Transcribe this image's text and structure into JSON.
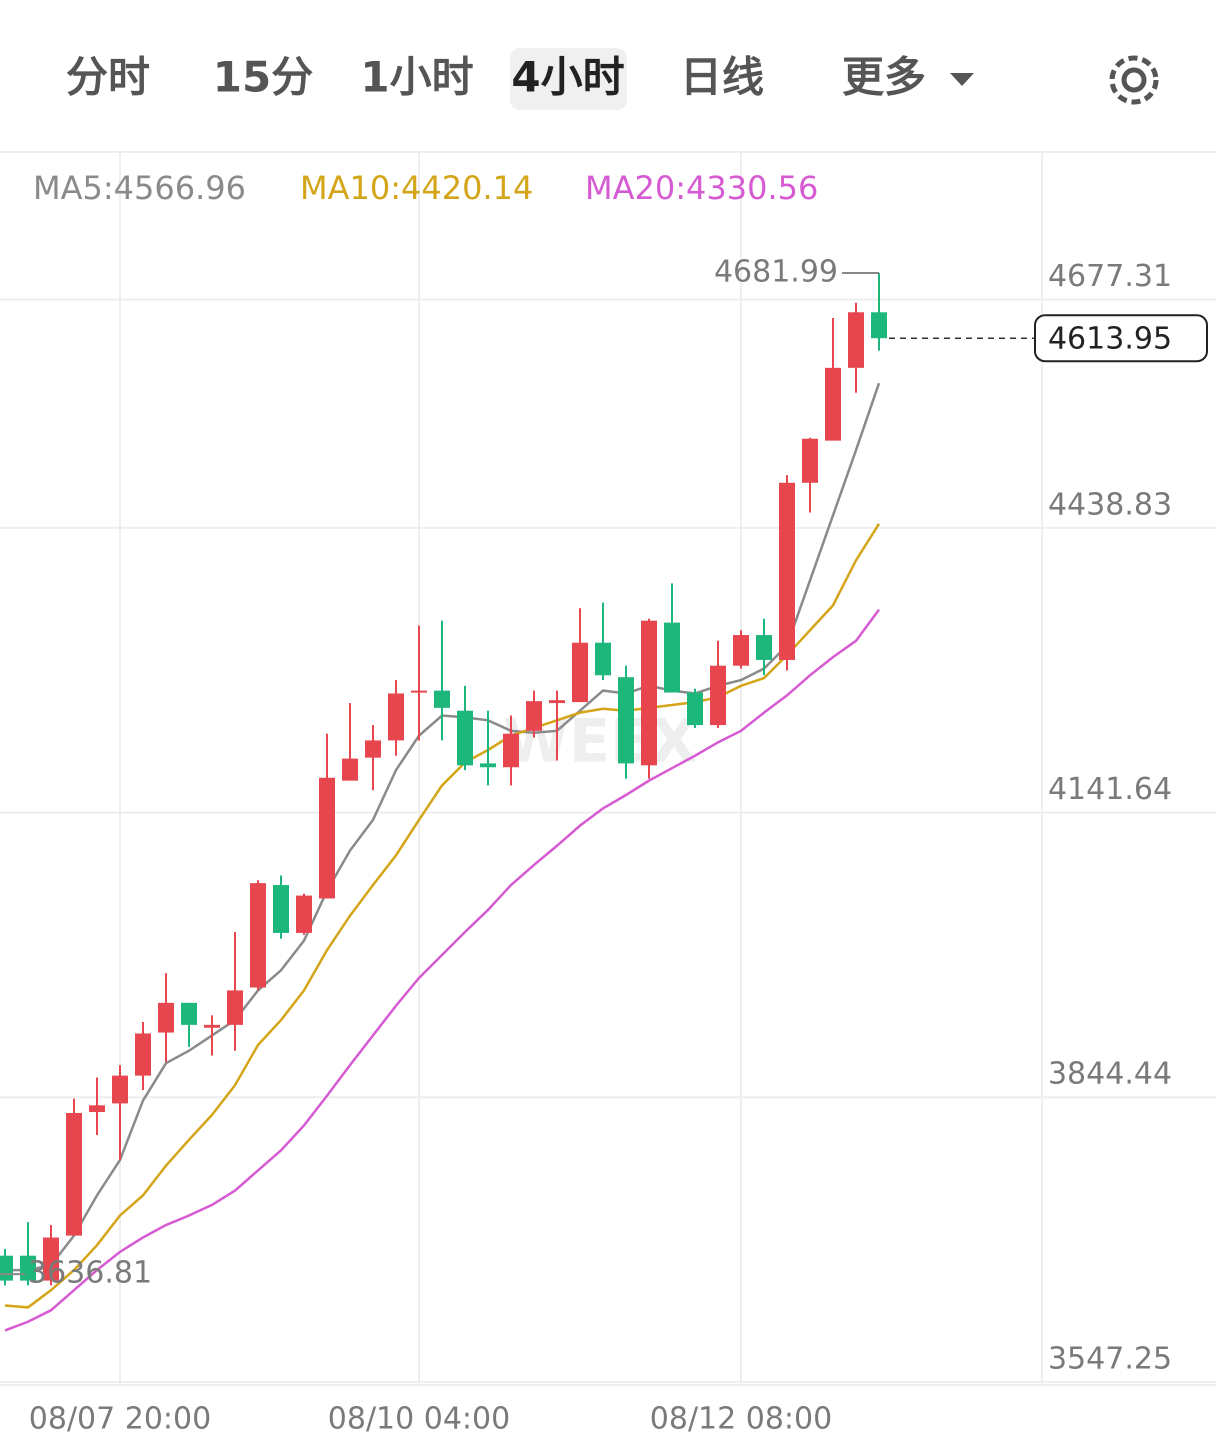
{
  "tabs": [
    "分时",
    "15分",
    "1小时",
    "4小时",
    "日线",
    "更多"
  ],
  "active_tab": 3,
  "chart_data": {
    "type": "candlestick",
    "categories": [
      null,
      null,
      null,
      null,
      null,
      "08/07 20:00",
      null,
      null,
      null,
      null,
      null,
      null,
      null,
      null,
      null,
      null,
      null,
      null,
      "08/10 04:00",
      null,
      null,
      null,
      null,
      null,
      null,
      null,
      null,
      null,
      null,
      null,
      null,
      null,
      "08/12 08:00",
      null,
      null,
      null,
      null,
      null,
      null
    ],
    "open": [
      3656,
      3656,
      3630,
      3677,
      3806,
      3815,
      3844,
      3889,
      3920,
      3894,
      3897,
      3936,
      4043,
      3993,
      4029,
      4152,
      4176,
      4194,
      4244,
      4246,
      4225,
      4170,
      4166,
      4204,
      4233,
      4234,
      4296,
      4260,
      4168,
      4317,
      4244,
      4210,
      4272,
      4304,
      4278,
      4463,
      4507,
      4583,
      4641
    ],
    "high": [
      3663,
      3691,
      3688,
      3820,
      3842,
      3855,
      3900,
      3951,
      3920,
      3907,
      3994,
      4048,
      4053,
      4034,
      4201,
      4233,
      4210,
      4257,
      4314,
      4319,
      4251,
      4225,
      4220,
      4246,
      4246,
      4332,
      4338,
      4272,
      4321,
      4358,
      4248,
      4298,
      4309,
      4321,
      4471,
      4510,
      4635,
      4651,
      4681.99
    ],
    "low": [
      3625,
      3625,
      3625,
      3677,
      3782,
      3756,
      3829,
      3858,
      3874,
      3865,
      3870,
      3933,
      3987,
      3991,
      4029,
      4152,
      4142,
      4178,
      4194,
      4194,
      4163,
      4147,
      4147,
      4197,
      4173,
      4234,
      4257,
      4154,
      4154,
      4244,
      4207,
      4207,
      4269,
      4262,
      4267,
      4432,
      4507,
      4557,
      4601
    ],
    "close": [
      3630,
      3630,
      3675,
      3805,
      3813,
      3844,
      3888,
      3920,
      3897,
      3897,
      3933,
      4045,
      3993,
      4032,
      4155,
      4175,
      4194,
      4243,
      4246,
      4228,
      4168,
      4166,
      4201,
      4235,
      4236,
      4296,
      4262,
      4170,
      4319,
      4244,
      4210,
      4272,
      4304,
      4278,
      4463,
      4509,
      4583,
      4641,
      4613.95
    ],
    "up_color": "#e8464f",
    "down_color": "#1db77c",
    "series": [
      {
        "name": "MA5:4566.96",
        "color": "#8a8a8a",
        "values": [
          3641,
          3641,
          3646,
          3677,
          3719,
          3756,
          3818,
          3857,
          3870,
          3886,
          3902,
          3933,
          3954,
          3985,
          4037,
          4079,
          4111,
          4163,
          4199,
          4220,
          4218,
          4215,
          4204,
          4202,
          4204,
          4225,
          4246,
          4243,
          4251,
          4246,
          4243,
          4251,
          4257,
          4269,
          4293,
          4361,
          4429,
          4497,
          4566.96
        ]
      },
      {
        "name": "MA10:4420.14",
        "color": "#d4a519",
        "values": [
          3604,
          3602,
          3620,
          3641,
          3667,
          3698,
          3719,
          3750,
          3777,
          3803,
          3834,
          3876,
          3902,
          3933,
          3975,
          4011,
          4043,
          4074,
          4111,
          4147,
          4171,
          4184,
          4199,
          4207,
          4215,
          4223,
          4227,
          4225,
          4228,
          4231,
          4234,
          4239,
          4251,
          4259,
          4283,
          4309,
          4335,
          4382,
          4420.14
        ]
      },
      {
        "name": "MA20:4330.56",
        "color": "#d65ad1",
        "values": [
          3578,
          3587,
          3599,
          3620,
          3641,
          3660,
          3675,
          3688,
          3698,
          3709,
          3724,
          3745,
          3766,
          3792,
          3823,
          3855,
          3886,
          3917,
          3946,
          3970,
          3994,
          4017,
          4043,
          4064,
          4084,
          4105,
          4123,
          4137,
          4152,
          4165,
          4178,
          4192,
          4204,
          4223,
          4241,
          4262,
          4281,
          4298,
          4330.56
        ]
      }
    ],
    "ylim": [
      3521,
      4800
    ],
    "yticks": [
      3547.25,
      3844.44,
      4141.64,
      4438.83,
      4677.31
    ],
    "grid": true,
    "max_label": 4681.99,
    "min_label": 3636.81,
    "last_price": 4613.95,
    "watermark": "WEEX"
  }
}
